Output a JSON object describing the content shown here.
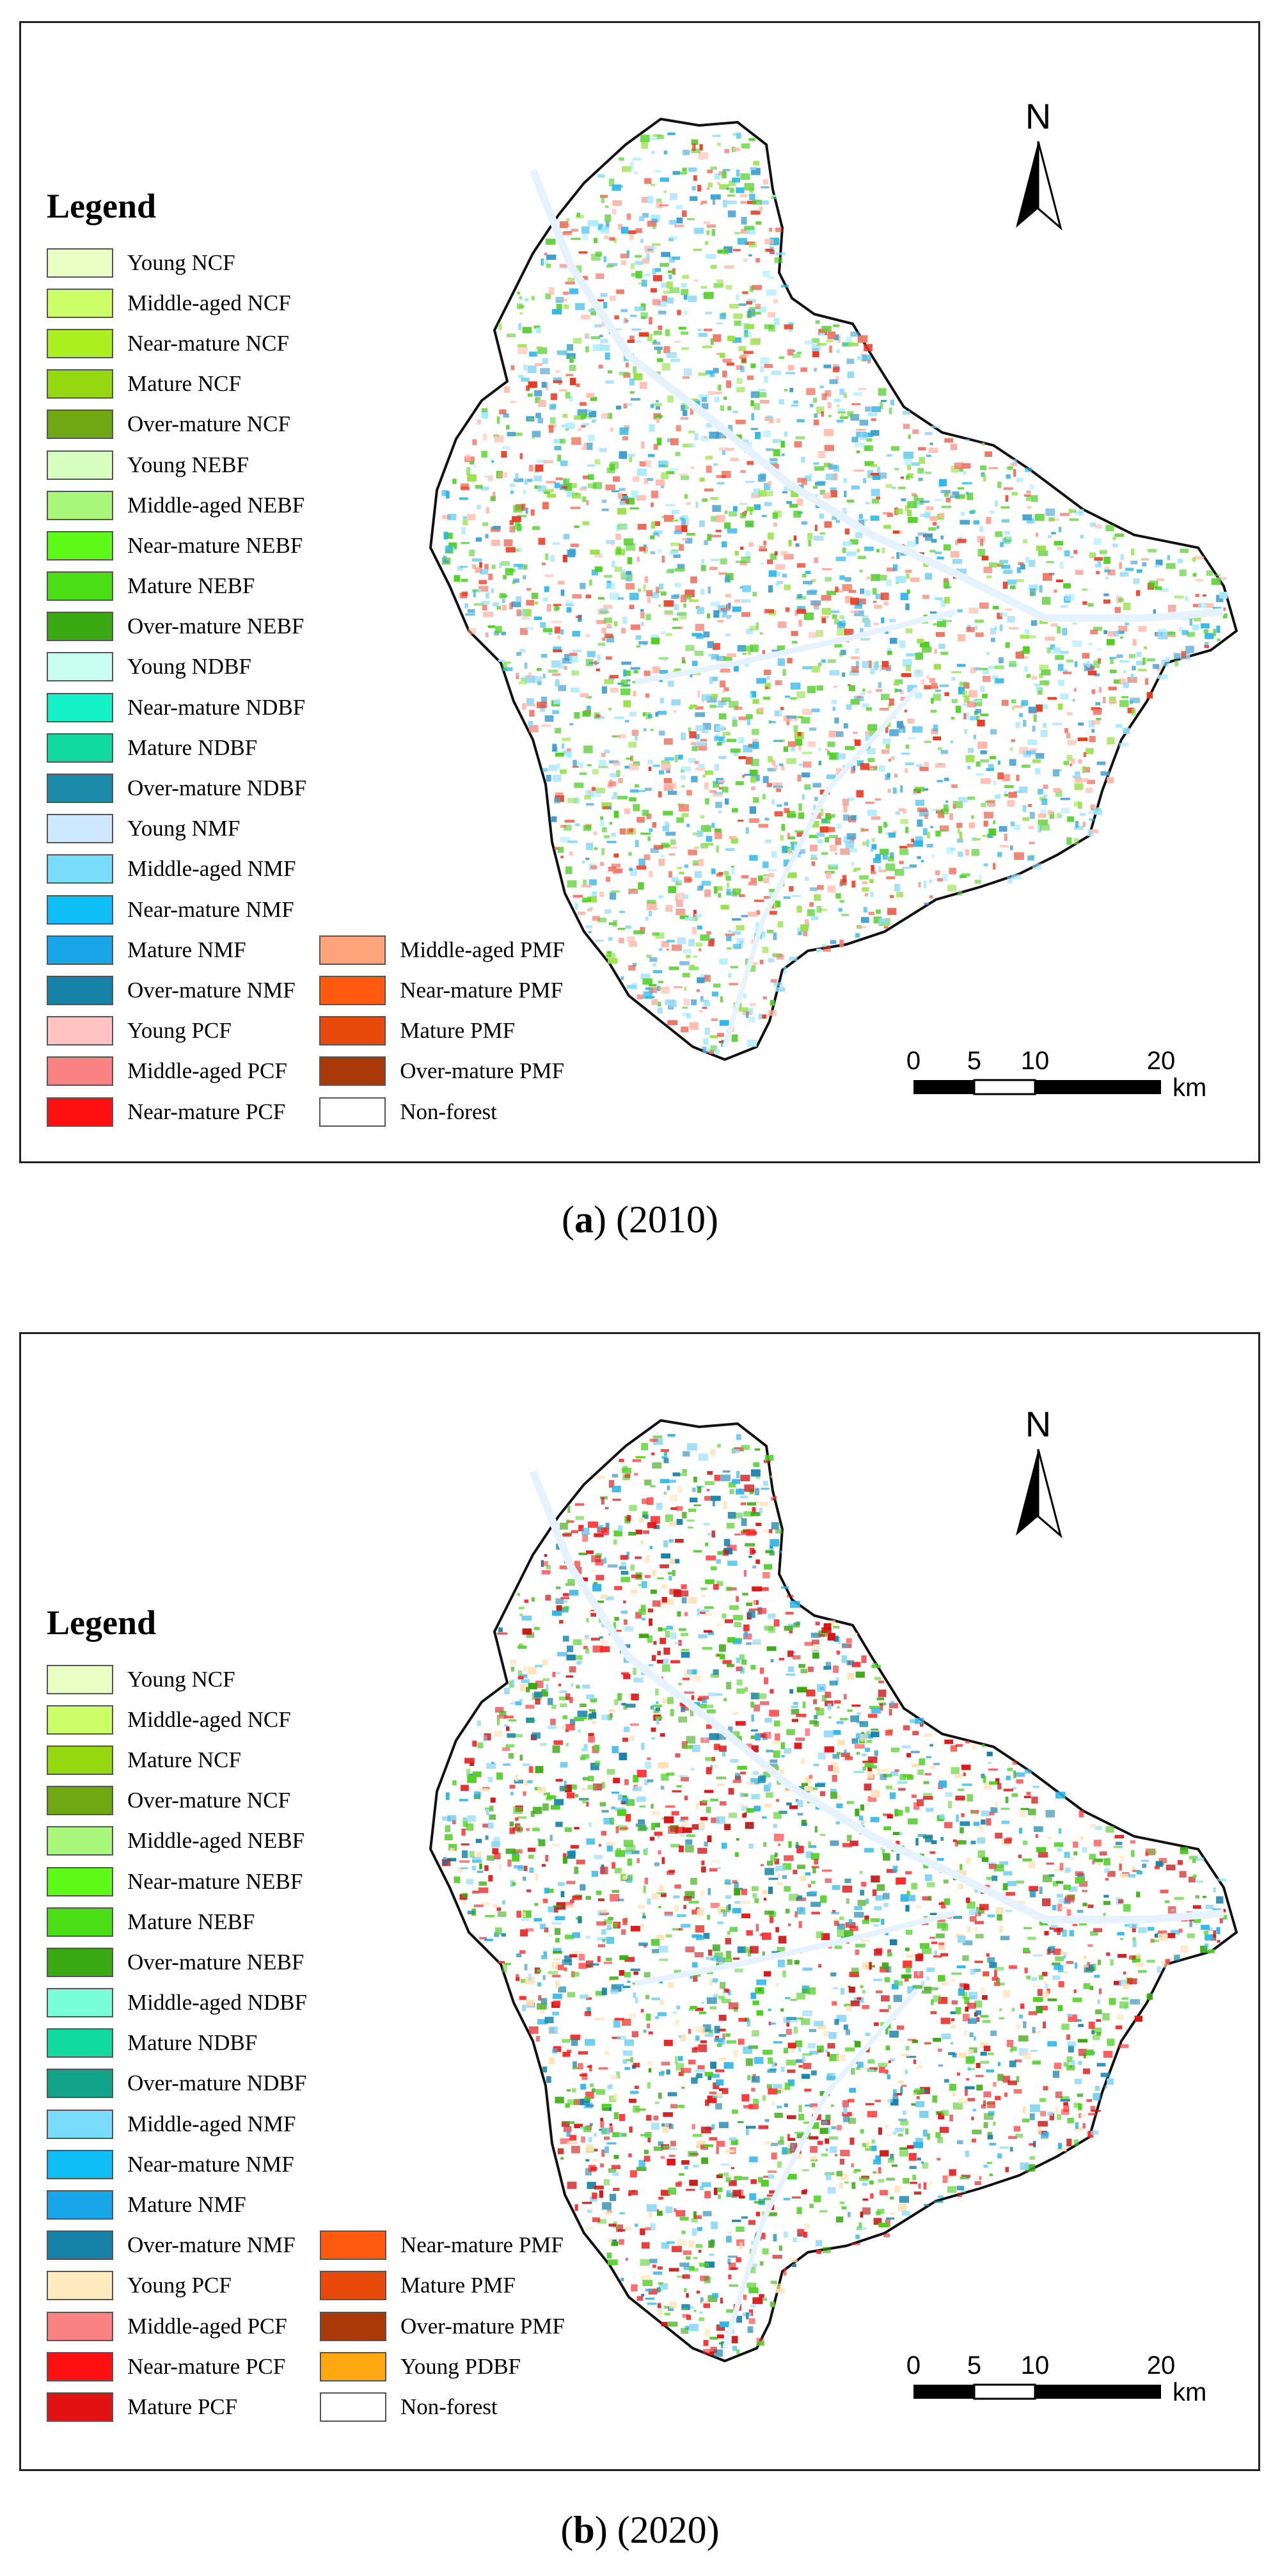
{
  "panels": [
    {
      "caption_letter": "a",
      "caption_rest": " (2010)",
      "legend_title": "Legend",
      "north_label": "N",
      "scale_ticks": [
        "0",
        "5",
        "10",
        "20"
      ],
      "scale_unit": "km",
      "legend_col1": [
        {
          "label": "Young NCF",
          "color": "#eaffc4"
        },
        {
          "label": "Middle-aged NCF",
          "color": "#ccff66"
        },
        {
          "label": "Near-mature NCF",
          "color": "#aaf020"
        },
        {
          "label": "Mature NCF",
          "color": "#95d80f"
        },
        {
          "label": "Over-mature NCF",
          "color": "#6fa812"
        },
        {
          "label": "Young NEBF",
          "color": "#d6ffc0"
        },
        {
          "label": "Middle-aged NEBF",
          "color": "#a8f67a"
        },
        {
          "label": "Near-mature NEBF",
          "color": "#5cfa16"
        },
        {
          "label": "Mature NEBF",
          "color": "#4ade14"
        },
        {
          "label": "Over-mature NEBF",
          "color": "#3aa812"
        },
        {
          "label": "Young NDBF",
          "color": "#c8fff0"
        },
        {
          "label": "Near-mature NDBF",
          "color": "#16f2c8"
        },
        {
          "label": "Mature NDBF",
          "color": "#10daa0"
        },
        {
          "label": "Over-mature NDBF",
          "color": "#1a8aa8"
        },
        {
          "label": "Young NMF",
          "color": "#cde8ff"
        },
        {
          "label": "Middle-aged NMF",
          "color": "#78dcfa"
        },
        {
          "label": "Near-mature NMF",
          "color": "#0fbef5"
        },
        {
          "label": "Mature NMF",
          "color": "#18a6e8"
        },
        {
          "label": "Over-mature NMF",
          "color": "#1682a8"
        },
        {
          "label": "Young PCF",
          "color": "#ffc2c2"
        },
        {
          "label": "Middle-aged PCF",
          "color": "#fa8282"
        },
        {
          "label": "Near-mature PCF",
          "color": "#ff1010"
        }
      ],
      "legend_col2": [
        {
          "label": "Middle-aged PMF",
          "color": "#ffa47a"
        },
        {
          "label": "Near-mature PMF",
          "color": "#ff5a10"
        },
        {
          "label": "Mature PMF",
          "color": "#e84a0c"
        },
        {
          "label": "Over-mature PMF",
          "color": "#aa3808"
        },
        {
          "label": "Non-forest",
          "color": "#ffffff"
        }
      ]
    },
    {
      "caption_letter": "b",
      "caption_rest": " (2020)",
      "legend_title": "Legend",
      "north_label": "N",
      "scale_ticks": [
        "0",
        "5",
        "10",
        "20"
      ],
      "scale_unit": "km",
      "legend_col1": [
        {
          "label": "Young NCF",
          "color": "#eaffc4"
        },
        {
          "label": "Middle-aged NCF",
          "color": "#ccff66"
        },
        {
          "label": "Mature NCF",
          "color": "#95d80f"
        },
        {
          "label": "Over-mature NCF",
          "color": "#6fa812"
        },
        {
          "label": "Middle-aged NEBF",
          "color": "#a8f67a"
        },
        {
          "label": "Near-mature NEBF",
          "color": "#5cfa16"
        },
        {
          "label": "Mature NEBF",
          "color": "#4ade14"
        },
        {
          "label": "Over-mature NEBF",
          "color": "#3aa812"
        },
        {
          "label": "Middle-aged NDBF",
          "color": "#78ffd8"
        },
        {
          "label": "Mature NDBF",
          "color": "#10daa0"
        },
        {
          "label": "Over-mature NDBF",
          "color": "#12a48a"
        },
        {
          "label": "Middle-aged NMF",
          "color": "#78dcfa"
        },
        {
          "label": "Near-mature NMF",
          "color": "#0fbef5"
        },
        {
          "label": "Mature NMF",
          "color": "#18a6e8"
        },
        {
          "label": "Over-mature NMF",
          "color": "#1682a8"
        },
        {
          "label": "Young PCF",
          "color": "#ffeac0"
        },
        {
          "label": "Middle-aged PCF",
          "color": "#fa8282"
        },
        {
          "label": "Near-mature PCF",
          "color": "#ff1010"
        },
        {
          "label": "Mature PCF",
          "color": "#e01212"
        }
      ],
      "legend_col2": [
        {
          "label": "Near-mature PMF",
          "color": "#ff5a10"
        },
        {
          "label": "Mature PMF",
          "color": "#e84a0c"
        },
        {
          "label": "Over-mature PMF",
          "color": "#aa3808"
        },
        {
          "label": "Young PDBF",
          "color": "#ffa812"
        },
        {
          "label": "Non-forest",
          "color": "#ffffff"
        }
      ]
    }
  ]
}
